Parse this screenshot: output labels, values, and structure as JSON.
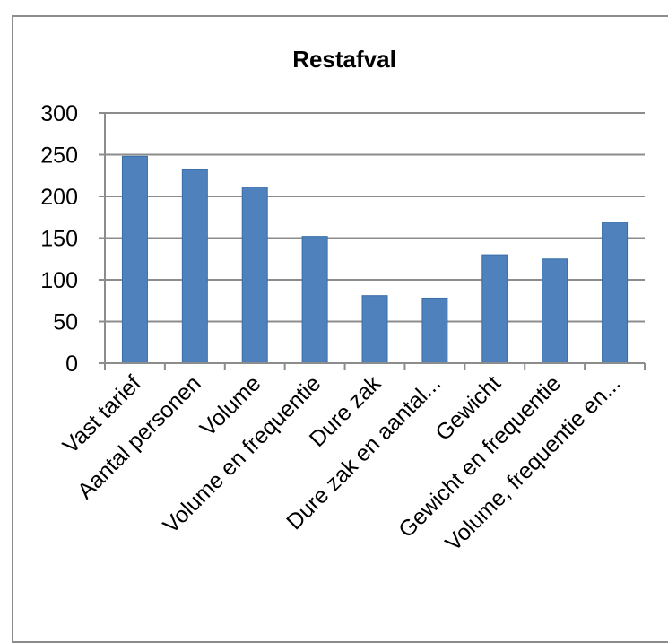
{
  "chart_data": {
    "type": "bar",
    "title": "Restafval",
    "xlabel": "",
    "ylabel": "",
    "categories": [
      "Vast tarief",
      "Aantal personen",
      "Volume",
      "Volume en frequentie",
      "Dure zak",
      "Dure zak en aantal...",
      "Gewicht",
      "Gewicht en frequentie",
      "Volume, frequentie en..."
    ],
    "values": [
      248,
      232,
      211,
      152,
      81,
      78,
      130,
      125,
      169
    ],
    "ylim": [
      0,
      300
    ],
    "yticks": [
      "0",
      "50",
      "100",
      "150",
      "200",
      "250",
      "300"
    ],
    "grid": true,
    "legend": "none",
    "colors": {
      "bar": "#4f81bd",
      "bar_edge": "#3a6ea8",
      "grid": "#8c8c8c",
      "axis": "#8c8c8c"
    }
  }
}
